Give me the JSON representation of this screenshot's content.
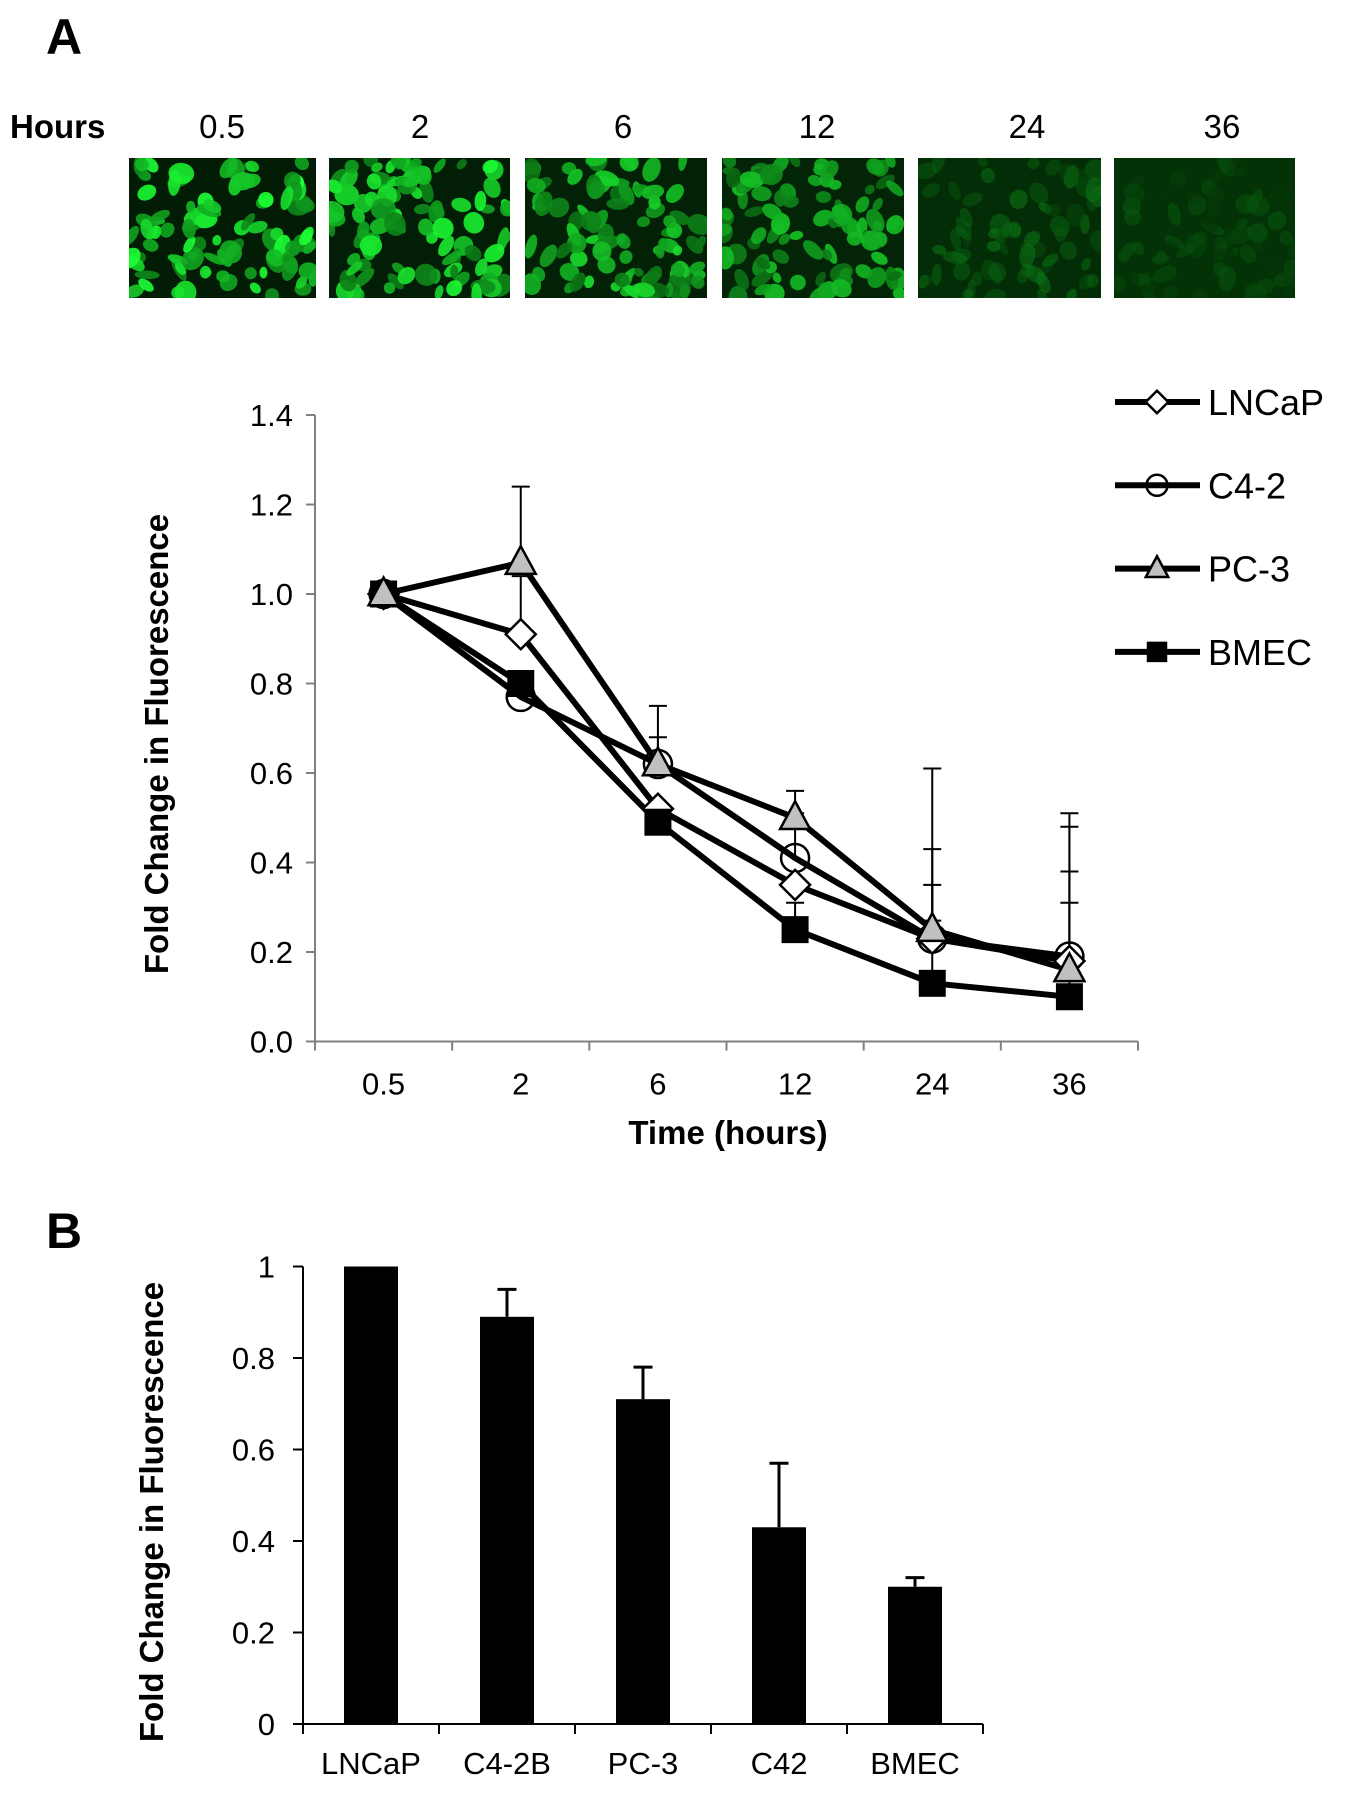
{
  "panel_a": {
    "letter": "A",
    "hours_label": "Hours",
    "time_points": [
      "0.5",
      "2",
      "6",
      "12",
      "24",
      "36"
    ],
    "tile_brightness": [
      1.0,
      0.92,
      0.82,
      0.72,
      0.42,
      0.28
    ]
  },
  "panel_b": {
    "letter": "B"
  },
  "colors": {
    "fluorescence_green": "#1fe23a",
    "background_green": "#032a05",
    "axis_grey": "#808080",
    "marker_grey": "#c0c0c0",
    "line_black": "#000000"
  },
  "chart_data": [
    {
      "type": "line",
      "title": "",
      "xlabel": "Time (hours)",
      "ylabel": "Fold Change in Fluorescence",
      "categories": [
        "0.5",
        "2",
        "6",
        "12",
        "24",
        "36"
      ],
      "ylim": [
        0.0,
        1.4
      ],
      "yticks": [
        "0.0",
        "0.2",
        "0.4",
        "0.6",
        "0.8",
        "1.0",
        "1.2",
        "1.4"
      ],
      "grid": false,
      "legend_position": "top-right",
      "series": [
        {
          "name": "LNCaP",
          "marker": "diamond-open",
          "values": [
            1.0,
            0.91,
            0.52,
            0.35,
            0.23,
            0.18
          ],
          "error_upper": [
            null,
            1.04,
            null,
            null,
            0.35,
            0.38
          ]
        },
        {
          "name": "C4-2",
          "marker": "circle-open",
          "values": [
            1.0,
            0.77,
            0.62,
            0.41,
            0.23,
            0.19
          ],
          "error_upper": [
            null,
            null,
            0.68,
            0.51,
            0.43,
            0.48
          ]
        },
        {
          "name": "PC-3",
          "marker": "triangle-grey",
          "values": [
            1.0,
            1.07,
            0.62,
            0.5,
            0.25,
            0.16
          ],
          "error_upper": [
            null,
            1.24,
            0.75,
            0.56,
            0.61,
            0.51
          ]
        },
        {
          "name": "BMEC",
          "marker": "square-filled",
          "values": [
            1.0,
            0.8,
            0.49,
            0.25,
            0.13,
            0.1
          ],
          "error_upper": [
            null,
            null,
            null,
            0.31,
            0.27,
            0.31
          ]
        }
      ]
    },
    {
      "type": "bar",
      "title": "",
      "xlabel": "",
      "ylabel": "Fold Change in Fluorescence",
      "categories": [
        "LNCaP",
        "C4-2B",
        "PC-3",
        "C42",
        "BMEC"
      ],
      "values": [
        1.0,
        0.89,
        0.71,
        0.43,
        0.3
      ],
      "error_upper": [
        null,
        0.95,
        0.78,
        0.57,
        0.32
      ],
      "ylim": [
        0,
        1
      ],
      "yticks": [
        "0",
        "0.2",
        "0.4",
        "0.6",
        "0.8",
        "1"
      ],
      "grid": false
    }
  ]
}
